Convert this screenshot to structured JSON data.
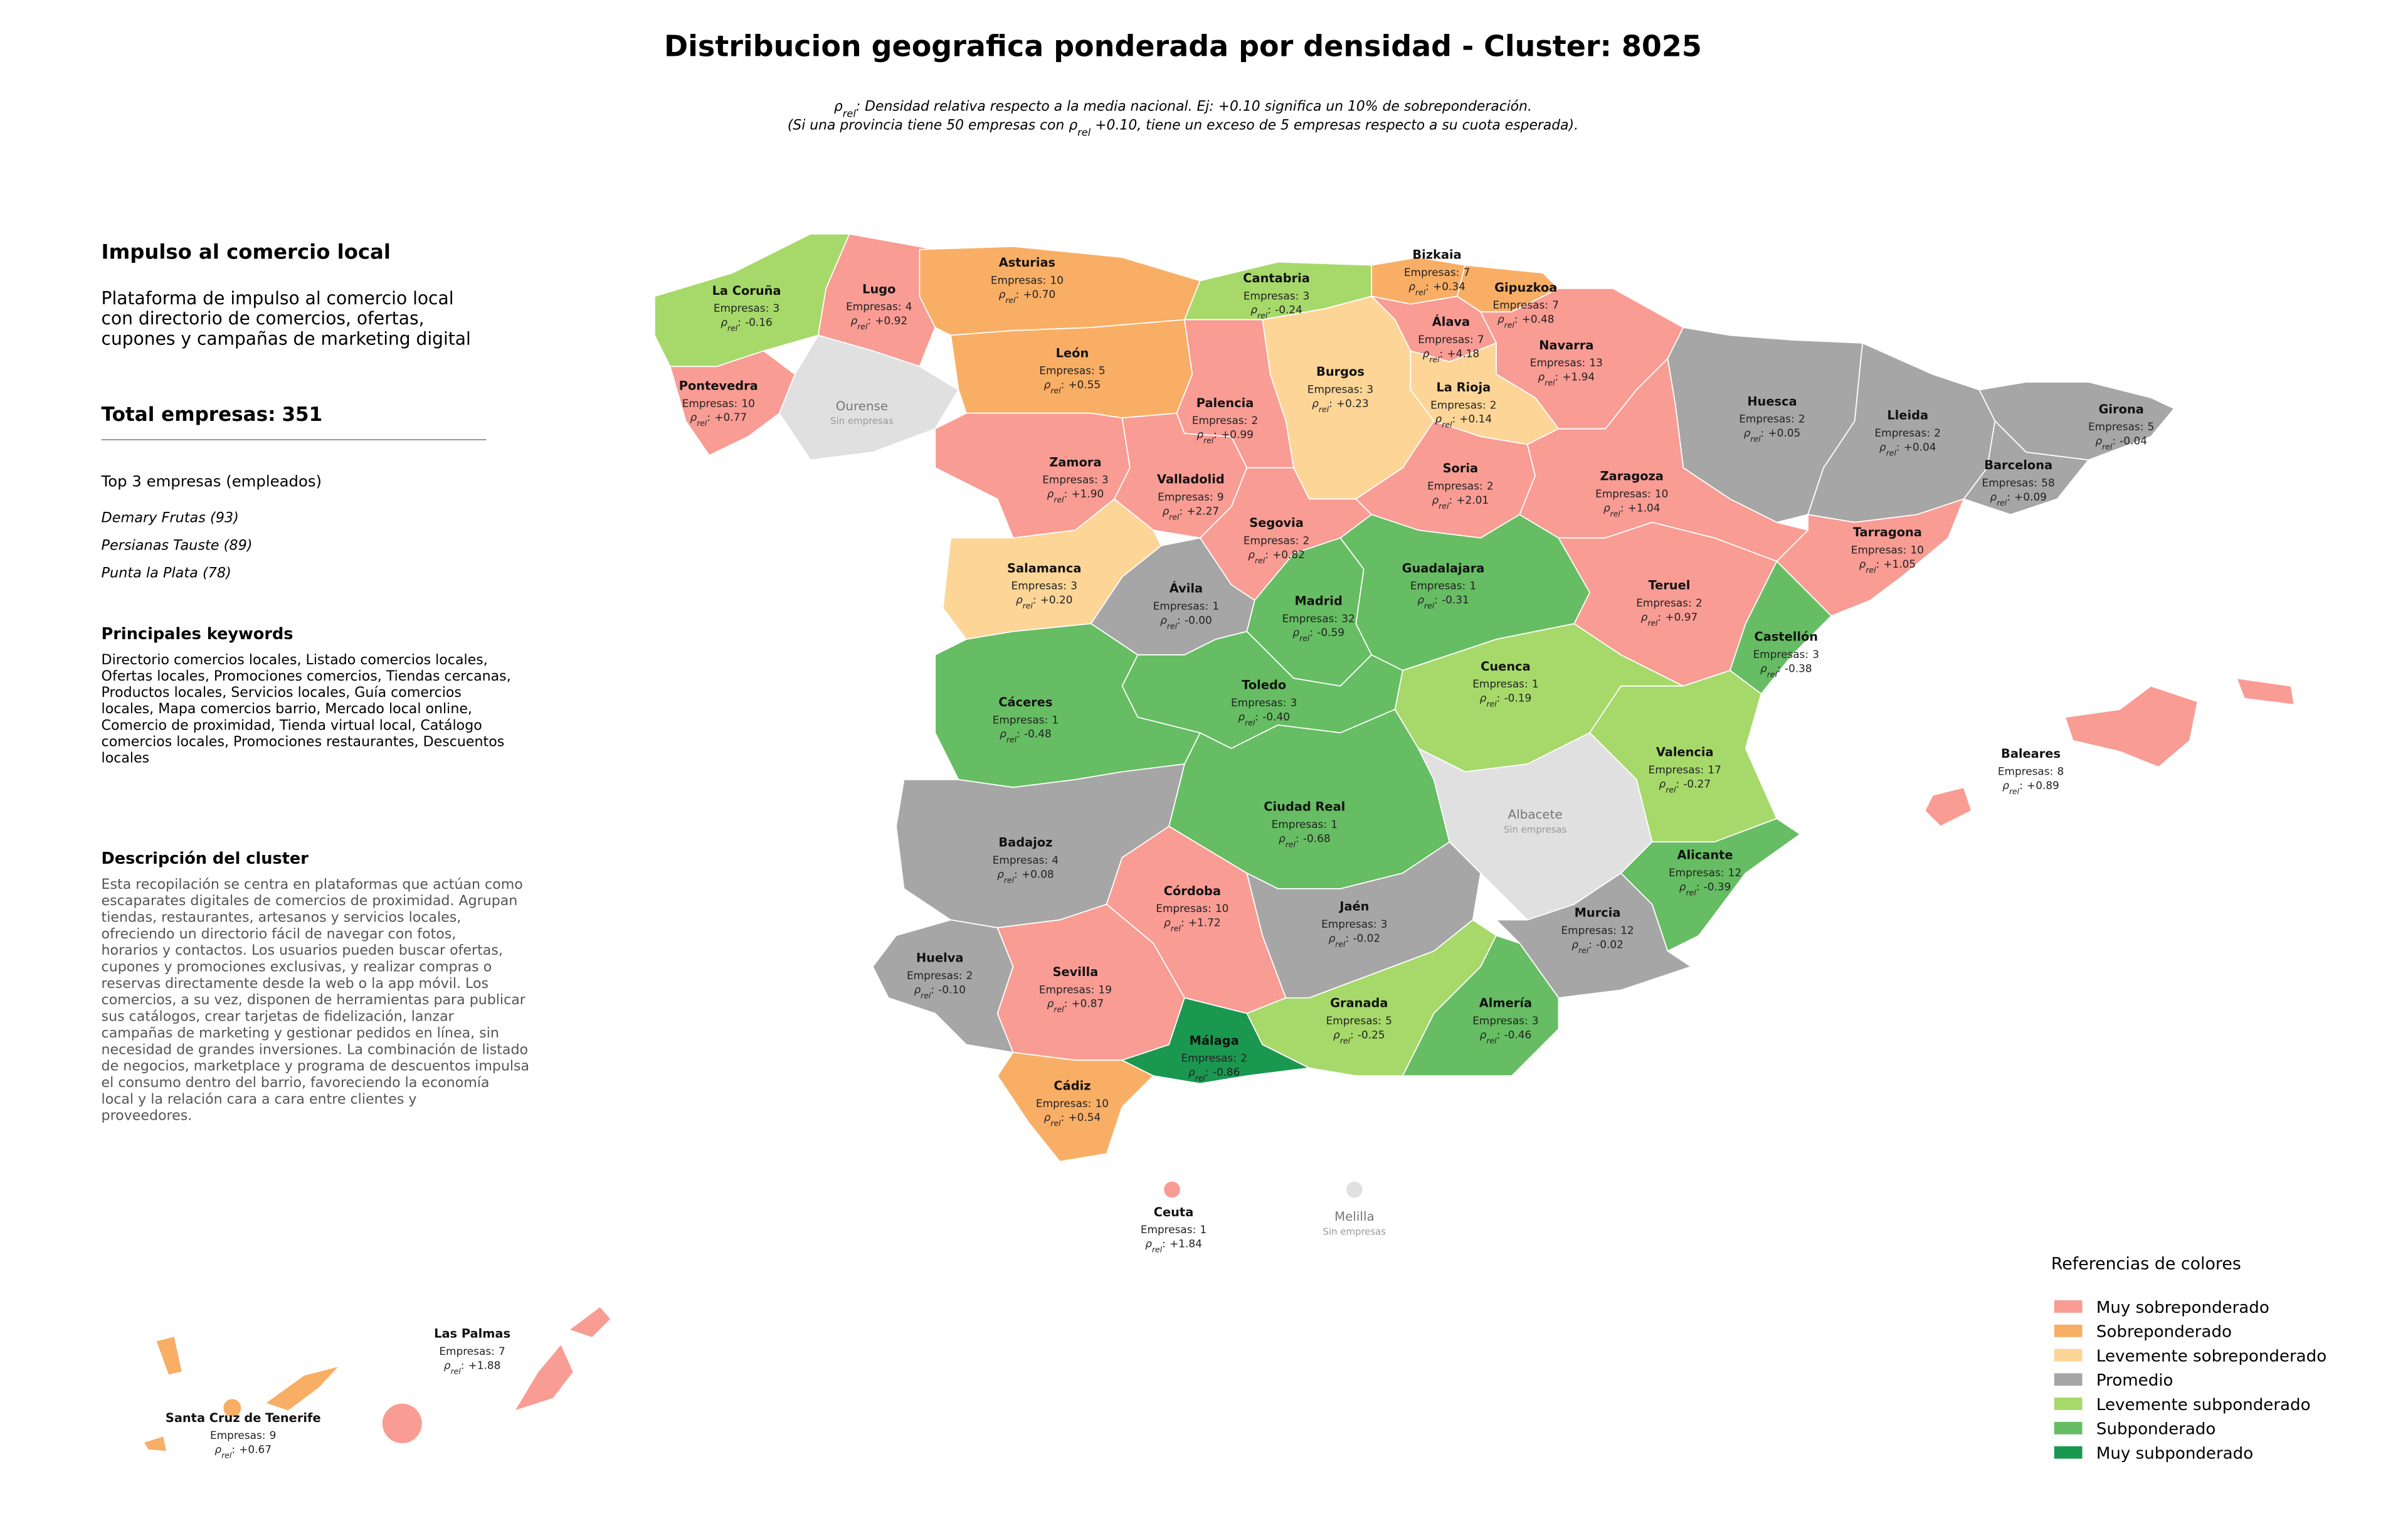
{
  "header": {
    "title": "Distribucion geografica ponderada por densidad - Cluster: 8025",
    "subtitle": [
      [
        {
          "text": "ρ"
        },
        {
          "text": "rel",
          "sub": true
        },
        {
          "text": ": Densidad relativa respecto a la media nacional. Ej: +0.10 significa un 10% de sobreponderación."
        }
      ],
      [
        {
          "text": "(Si una provincia tiene 50 empresas con "
        },
        {
          "text": "ρ"
        },
        {
          "text": "rel",
          "sub": true
        },
        {
          "text": " +0.10, tiene un exceso de 5 empresas respecto a su cuota esperada)."
        }
      ]
    ]
  },
  "panel": {
    "title": "Impulso al comercio local",
    "summary": [
      "Plataforma de impulso al comercio local",
      "con directorio de comercios, ofertas,",
      "cupones y campañas de marketing digital"
    ],
    "total_label": "Total empresas:",
    "total": 351,
    "top_title": "Top 3 empresas (empleados)",
    "top": [
      "Demary Frutas (93)",
      "Persianas Tauste (89)",
      "Punta la Plata (78)"
    ],
    "keywords_title": "Principales keywords",
    "keywords": [
      "Directorio comercios locales, Listado comercios locales,",
      "Ofertas locales, Promociones comercios, Tiendas cercanas,",
      "Productos locales, Servicios locales, Guía comercios",
      "locales, Mapa comercios barrio, Mercado local online,",
      "Comercio de proximidad, Tienda virtual local, Catálogo",
      "comercios locales, Promociones restaurantes, Descuentos",
      "locales"
    ],
    "description_title": "Descripción del cluster",
    "description": [
      "Esta recopilación se centra en plataformas que actúan como",
      "escaparates digitales de comercios de proximidad. Agrupan",
      "tiendas, restaurantes, artesanos y servicios locales,",
      "ofreciendo un directorio fácil de navegar con fotos,",
      "horarios y contactos. Los usuarios pueden buscar ofertas,",
      "cupones y promociones exclusivas, y realizar compras o",
      "reservas directamente desde la web o la app móvil. Los",
      "comercios, a su vez, disponen de herramientas para publicar",
      "sus catálogos, crear tarjetas de fidelización, lanzar",
      "campañas de marketing y gestionar pedidos en línea, sin",
      "necesidad de grandes inversiones. La combinación de listado",
      "de negocios, marketplace y programa de descuentos impulsa",
      "el consumo dentro del barrio, favoreciendo la economía",
      "local y la relación cara a cara entre clientes y",
      "proveedores."
    ]
  },
  "map": {
    "empresas_label": "Empresas:",
    "rho_symbol": "ρ",
    "rho_sub": "rel",
    "rho_colon": ":",
    "no_data_label": "Sin empresas",
    "provinces": [
      {
        "name": "La Coruña",
        "empresas": 3,
        "rho": -0.16,
        "rho_label": "-0.16",
        "color": "#a6d96a"
      },
      {
        "name": "Lugo",
        "empresas": 4,
        "rho": 0.92,
        "rho_label": "+0.92",
        "color": "#f89c94"
      },
      {
        "name": "Pontevedra",
        "empresas": 10,
        "rho": 0.77,
        "rho_label": "+0.77",
        "color": "#f89c94"
      },
      {
        "name": "Ourense",
        "color": "#e0e0e0"
      },
      {
        "name": "Asturias",
        "empresas": 10,
        "rho": 0.7,
        "rho_label": "+0.70",
        "color": "#f9ae66"
      },
      {
        "name": "León",
        "empresas": 5,
        "rho": 0.55,
        "rho_label": "+0.55",
        "color": "#f9ae66"
      },
      {
        "name": "Cantabria",
        "empresas": 3,
        "rho": -0.24,
        "rho_label": "-0.24",
        "color": "#a6d96a"
      },
      {
        "name": "Bizkaia",
        "empresas": 7,
        "rho": 0.34,
        "rho_label": "+0.34",
        "color": "#f9ae66"
      },
      {
        "name": "Gipuzkoa",
        "empresas": 7,
        "rho": 0.48,
        "rho_label": "+0.48",
        "color": "#f9ae66"
      },
      {
        "name": "Álava",
        "empresas": 7,
        "rho": 4.18,
        "rho_label": "+4.18",
        "color": "#f89c94"
      },
      {
        "name": "Navarra",
        "empresas": 13,
        "rho": 1.94,
        "rho_label": "+1.94",
        "color": "#f89c94"
      },
      {
        "name": "La Rioja",
        "empresas": 2,
        "rho": 0.14,
        "rho_label": "+0.14",
        "color": "#fcd597"
      },
      {
        "name": "Burgos",
        "empresas": 3,
        "rho": 0.23,
        "rho_label": "+0.23",
        "color": "#fcd597"
      },
      {
        "name": "Palencia",
        "empresas": 2,
        "rho": 0.99,
        "rho_label": "+0.99",
        "color": "#f89c94"
      },
      {
        "name": "Zamora",
        "empresas": 3,
        "rho": 1.9,
        "rho_label": "+1.90",
        "color": "#f89c94"
      },
      {
        "name": "Valladolid",
        "empresas": 9,
        "rho": 2.27,
        "rho_label": "+2.27",
        "color": "#f89c94"
      },
      {
        "name": "Soria",
        "empresas": 2,
        "rho": 2.01,
        "rho_label": "+2.01",
        "color": "#f89c94"
      },
      {
        "name": "Segovia",
        "empresas": 2,
        "rho": 0.82,
        "rho_label": "+0.82",
        "color": "#f89c94"
      },
      {
        "name": "Salamanca",
        "empresas": 3,
        "rho": 0.2,
        "rho_label": "+0.20",
        "color": "#fcd597"
      },
      {
        "name": "Ávila",
        "empresas": 1,
        "rho": 0,
        "rho_label": "-0.00",
        "color": "#a6a6a6"
      },
      {
        "name": "Madrid",
        "empresas": 32,
        "rho": -0.59,
        "rho_label": "-0.59",
        "color": "#66bd63"
      },
      {
        "name": "Guadalajara",
        "empresas": 1,
        "rho": -0.31,
        "rho_label": "-0.31",
        "color": "#66bd63"
      },
      {
        "name": "Huesca",
        "empresas": 2,
        "rho": 0.05,
        "rho_label": "+0.05",
        "color": "#a6a6a6"
      },
      {
        "name": "Lleida",
        "empresas": 2,
        "rho": 0.04,
        "rho_label": "+0.04",
        "color": "#a6a6a6"
      },
      {
        "name": "Girona",
        "empresas": 5,
        "rho": -0.04,
        "rho_label": "-0.04",
        "color": "#a6a6a6"
      },
      {
        "name": "Barcelona",
        "empresas": 58,
        "rho": 0.09,
        "rho_label": "+0.09",
        "color": "#a6a6a6"
      },
      {
        "name": "Zaragoza",
        "empresas": 10,
        "rho": 1.04,
        "rho_label": "+1.04",
        "color": "#f89c94"
      },
      {
        "name": "Tarragona",
        "empresas": 10,
        "rho": 1.05,
        "rho_label": "+1.05",
        "color": "#f89c94"
      },
      {
        "name": "Teruel",
        "empresas": 2,
        "rho": 0.97,
        "rho_label": "+0.97",
        "color": "#f89c94"
      },
      {
        "name": "Castellón",
        "empresas": 3,
        "rho": -0.38,
        "rho_label": "-0.38",
        "color": "#66bd63"
      },
      {
        "name": "Cuenca",
        "empresas": 1,
        "rho": -0.19,
        "rho_label": "-0.19",
        "color": "#a6d96a"
      },
      {
        "name": "Toledo",
        "empresas": 3,
        "rho": -0.4,
        "rho_label": "-0.40",
        "color": "#66bd63"
      },
      {
        "name": "Cáceres",
        "empresas": 1,
        "rho": -0.48,
        "rho_label": "-0.48",
        "color": "#66bd63"
      },
      {
        "name": "Valencia",
        "empresas": 17,
        "rho": -0.27,
        "rho_label": "-0.27",
        "color": "#a6d96a"
      },
      {
        "name": "Ciudad Real",
        "empresas": 1,
        "rho": -0.68,
        "rho_label": "-0.68",
        "color": "#66bd63"
      },
      {
        "name": "Albacete",
        "color": "#e0e0e0"
      },
      {
        "name": "Badajoz",
        "empresas": 4,
        "rho": 0.08,
        "rho_label": "+0.08",
        "color": "#a6a6a6"
      },
      {
        "name": "Alicante",
        "empresas": 12,
        "rho": -0.39,
        "rho_label": "-0.39",
        "color": "#66bd63"
      },
      {
        "name": "Córdoba",
        "empresas": 10,
        "rho": 1.72,
        "rho_label": "+1.72",
        "color": "#f89c94"
      },
      {
        "name": "Jaén",
        "empresas": 3,
        "rho": -0.02,
        "rho_label": "-0.02",
        "color": "#a6a6a6"
      },
      {
        "name": "Murcia",
        "empresas": 12,
        "rho": -0.02,
        "rho_label": "-0.02",
        "color": "#a6a6a6"
      },
      {
        "name": "Huelva",
        "empresas": 2,
        "rho": -0.1,
        "rho_label": "-0.10",
        "color": "#a6a6a6"
      },
      {
        "name": "Sevilla",
        "empresas": 19,
        "rho": 0.87,
        "rho_label": "+0.87",
        "color": "#f89c94"
      },
      {
        "name": "Granada",
        "empresas": 5,
        "rho": -0.25,
        "rho_label": "-0.25",
        "color": "#a6d96a"
      },
      {
        "name": "Almería",
        "empresas": 3,
        "rho": -0.46,
        "rho_label": "-0.46",
        "color": "#66bd63"
      },
      {
        "name": "Málaga",
        "empresas": 2,
        "rho": -0.86,
        "rho_label": "-0.86",
        "color": "#1a9850"
      },
      {
        "name": "Cádiz",
        "empresas": 10,
        "rho": 0.54,
        "rho_label": "+0.54",
        "color": "#f9ae66"
      },
      {
        "name": "Baleares",
        "empresas": 8,
        "rho": 0.89,
        "rho_label": "+0.89",
        "color": "#f89c94"
      },
      {
        "name": "Ceuta",
        "empresas": 1,
        "rho": 1.84,
        "rho_label": "+1.84",
        "color": "#f89c94"
      },
      {
        "name": "Melilla",
        "color": "#e0e0e0"
      },
      {
        "name": "Las Palmas",
        "empresas": 7,
        "rho": 1.88,
        "rho_label": "+1.88",
        "color": "#f89c94"
      },
      {
        "name": "Santa Cruz de Tenerife",
        "empresas": 9,
        "rho": 0.67,
        "rho_label": "+0.67",
        "color": "#f9ae66"
      }
    ]
  },
  "legend": {
    "title": "Referencias de colores",
    "items": [
      {
        "name": "Muy sobreponderado",
        "color": "#f89c94"
      },
      {
        "name": "Sobreponderado",
        "color": "#f9ae66"
      },
      {
        "name": "Levemente sobreponderado",
        "color": "#fcd597"
      },
      {
        "name": "Promedio",
        "color": "#a6a6a6"
      },
      {
        "name": "Levemente subponderado",
        "color": "#a6d96a"
      },
      {
        "name": "Subponderado",
        "color": "#66bd63"
      },
      {
        "name": "Muy subponderado",
        "color": "#1a9850"
      }
    ]
  }
}
